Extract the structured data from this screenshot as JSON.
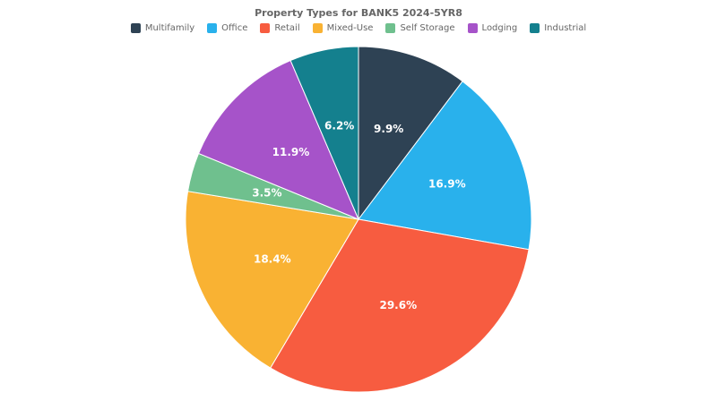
{
  "chart_data": {
    "type": "pie",
    "title": "Property Types for BANK5 2024-5YR8",
    "legend_position": "top",
    "start_angle_deg": -90,
    "direction": "clockwise",
    "label_color": "#ffffff",
    "slices": [
      {
        "label": "Multifamily",
        "value": 9.9,
        "pct_label": "9.9%",
        "color": "#2e4254"
      },
      {
        "label": "Office",
        "value": 16.9,
        "pct_label": "16.9%",
        "color": "#29b1ec"
      },
      {
        "label": "Retail",
        "value": 29.6,
        "pct_label": "29.6%",
        "color": "#f75c40"
      },
      {
        "label": "Mixed-Use",
        "value": 18.4,
        "pct_label": "18.4%",
        "color": "#f9b233"
      },
      {
        "label": "Self Storage",
        "value": 3.5,
        "pct_label": "3.5%",
        "color": "#6fc08e"
      },
      {
        "label": "Lodging",
        "value": 11.9,
        "pct_label": "11.9%",
        "color": "#a653c9"
      },
      {
        "label": "Industrial",
        "value": 6.2,
        "pct_label": "6.2%",
        "color": "#14808e"
      }
    ]
  }
}
